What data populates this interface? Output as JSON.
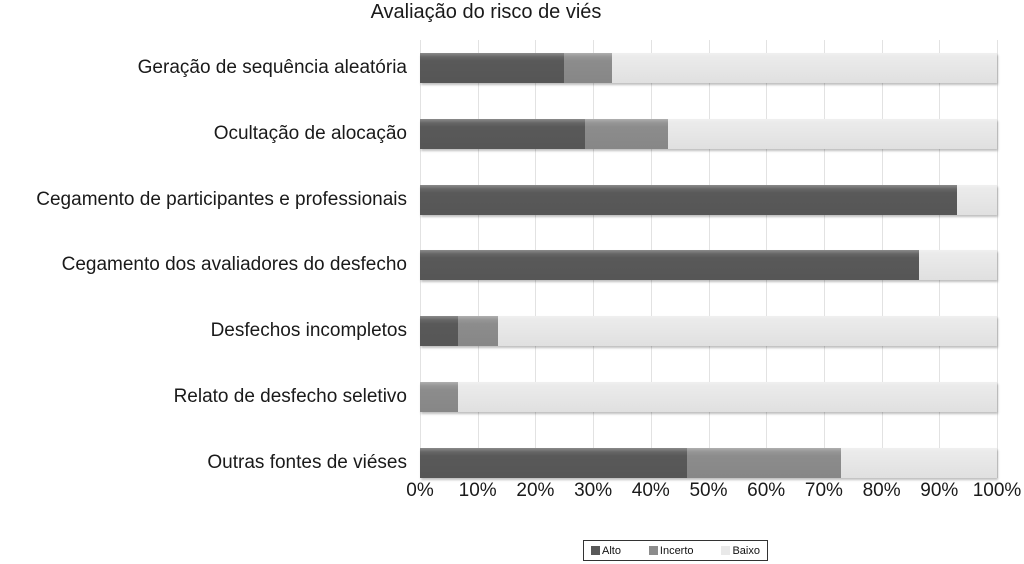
{
  "colors": {
    "alto": "#595959",
    "incerto": "#8c8c8c",
    "baixo": "#e9e9e9",
    "gridline": "#e2e2e2",
    "background": "#ffffff",
    "text": "#1a1a1a",
    "legend_border": "#333333"
  },
  "legend": {
    "items": [
      {
        "key": "alto",
        "label": "Alto",
        "color": "#595959"
      },
      {
        "key": "incerto",
        "label": "Incerto",
        "color": "#8c8c8c"
      },
      {
        "key": "baixo",
        "label": "Baixo",
        "color": "#e9e9e9"
      }
    ]
  },
  "chart_data": {
    "type": "bar",
    "stacked": true,
    "orientation": "horizontal",
    "title": "Avaliação do risco de viés",
    "categories": [
      "Geração de sequência aleatória",
      "Ocultação de alocação",
      "Cegamento de participantes e professionais",
      "Cegamento dos avaliadores do desfecho",
      "Desfechos incompletos",
      "Relato de desfecho seletivo",
      "Outras fontes de viéses"
    ],
    "series": [
      {
        "key": "alto",
        "name": "Alto",
        "color": "#595959",
        "values": [
          25.0,
          28.6,
          93.0,
          86.5,
          6.5,
          0.0,
          46.3
        ]
      },
      {
        "key": "incerto",
        "name": "Incerto",
        "color": "#8c8c8c",
        "values": [
          8.3,
          14.3,
          0.0,
          0.0,
          7.0,
          6.5,
          26.7
        ]
      },
      {
        "key": "baixo",
        "name": "Baixo",
        "color": "#e9e9e9",
        "values": [
          66.7,
          57.1,
          7.0,
          13.5,
          86.5,
          93.5,
          27.0
        ]
      }
    ],
    "xlim": [
      0,
      100
    ],
    "x_tick_values": [
      0,
      10,
      20,
      30,
      40,
      50,
      60,
      70,
      80,
      90,
      100
    ],
    "x_tick_labels": [
      "0%",
      "10%",
      "20%",
      "30%",
      "40%",
      "50%",
      "60%",
      "70%",
      "80%",
      "90%",
      "100%"
    ],
    "grid": "vertical-gridlines",
    "legend_position": "bottom-center"
  }
}
